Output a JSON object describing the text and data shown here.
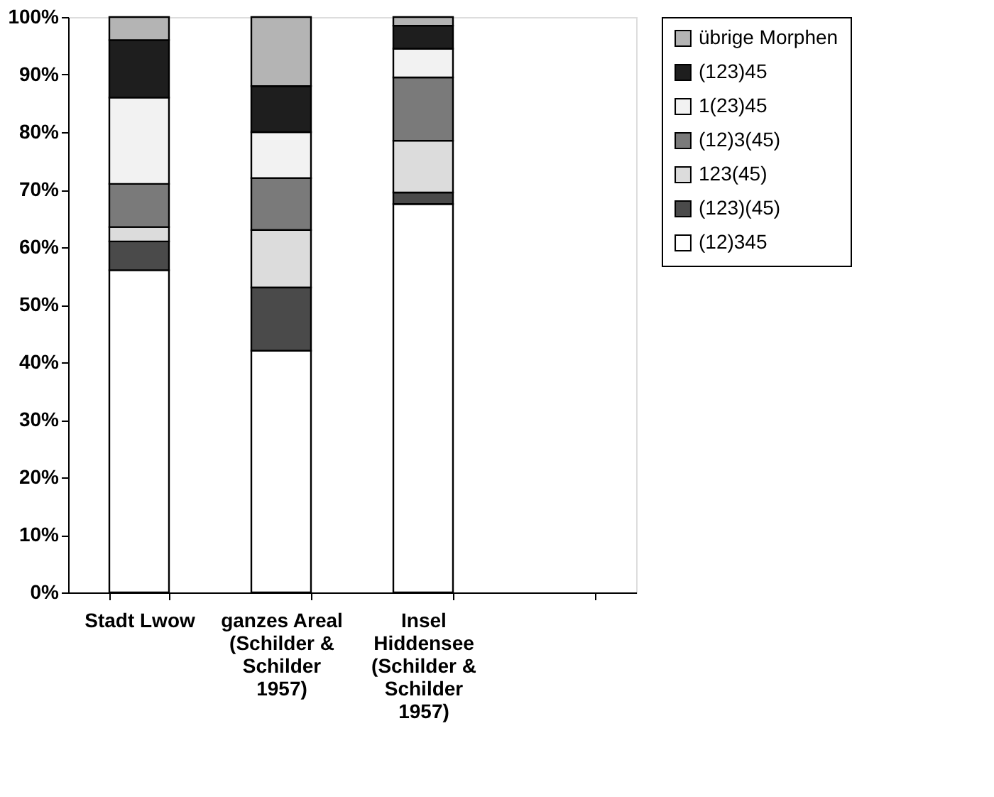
{
  "chart_data": {
    "type": "bar",
    "stacked": true,
    "categories": [
      "Stadt Lwow",
      "ganzes Areal\n(Schilder &\nSchilder\n1957)",
      "Insel\nHiddensee\n(Schilder &\nSchilder\n1957)",
      null
    ],
    "series": [
      {
        "name": "(12)345",
        "color": "#ffffff",
        "values": [
          56,
          42,
          67.5,
          null
        ]
      },
      {
        "name": "(123)(45)",
        "color": "#4a4a4a",
        "values": [
          5,
          11,
          2,
          null
        ]
      },
      {
        "name": "123(45)",
        "color": "#dcdcdc",
        "values": [
          2.5,
          10,
          9,
          null
        ]
      },
      {
        "name": "(12)3(45)",
        "color": "#7a7a7a",
        "values": [
          7.5,
          9,
          11,
          null
        ]
      },
      {
        "name": "1(23)45",
        "color": "#f2f2f2",
        "values": [
          15,
          8,
          5,
          null
        ]
      },
      {
        "name": "(123)45",
        "color": "#1e1e1e",
        "values": [
          10,
          8,
          4,
          null
        ]
      },
      {
        "name": "übrige Morphen",
        "color": "#b4b4b4",
        "values": [
          4,
          12,
          1.5,
          null
        ]
      }
    ],
    "ylim": [
      0,
      100
    ],
    "yticks": [
      {
        "value": 0,
        "label": "0%"
      },
      {
        "value": 10,
        "label": "10%"
      },
      {
        "value": 20,
        "label": "20%"
      },
      {
        "value": 30,
        "label": "30%"
      },
      {
        "value": 40,
        "label": "40%"
      },
      {
        "value": 50,
        "label": "50%"
      },
      {
        "value": 60,
        "label": "60%"
      },
      {
        "value": 70,
        "label": "70%"
      },
      {
        "value": 80,
        "label": "80%"
      },
      {
        "value": 90,
        "label": "90%"
      },
      {
        "value": 100,
        "label": "100%"
      }
    ],
    "grid": false,
    "legend": "right"
  }
}
